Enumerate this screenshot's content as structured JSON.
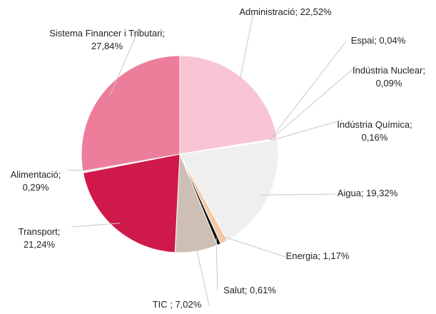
{
  "chart_data": {
    "type": "pie",
    "categories": [
      "Administració",
      "Espai",
      "Indústria Nuclear",
      "Indústria Química",
      "Aigua",
      "Energia",
      "Salut",
      "TIC",
      "Transport",
      "Alimentació",
      "Sistema Financer i Tributari"
    ],
    "values": [
      22.52,
      0.04,
      0.09,
      0.16,
      19.32,
      1.17,
      0.61,
      7.02,
      21.24,
      0.29,
      27.84
    ],
    "value_labels": [
      [
        "Administració; 22,52%"
      ],
      [
        "Espai; 0,04%"
      ],
      [
        "Indústria Nuclear;",
        "0,09%"
      ],
      [
        "Indústria Química;",
        "0,16%"
      ],
      [
        "Aigua; 19,32%"
      ],
      [
        "Energia; 1,17%"
      ],
      [
        "Salut; 0,61%"
      ],
      [
        "TIC ; 7,02%"
      ],
      [
        "Transport;",
        "21,24%"
      ],
      [
        "Alimentació;",
        "0,29%"
      ],
      [
        "Sistema Financer i Tributari;",
        "27,84%"
      ]
    ],
    "colors": [
      "#f9c5d4",
      "#c9a7ae",
      "#9a9a9a",
      "#b5b5b5",
      "#efefef",
      "#f6c8a3",
      "#111111",
      "#cdbfb3",
      "#d0194b",
      "#e6e6e6",
      "#ec7e9c"
    ]
  }
}
